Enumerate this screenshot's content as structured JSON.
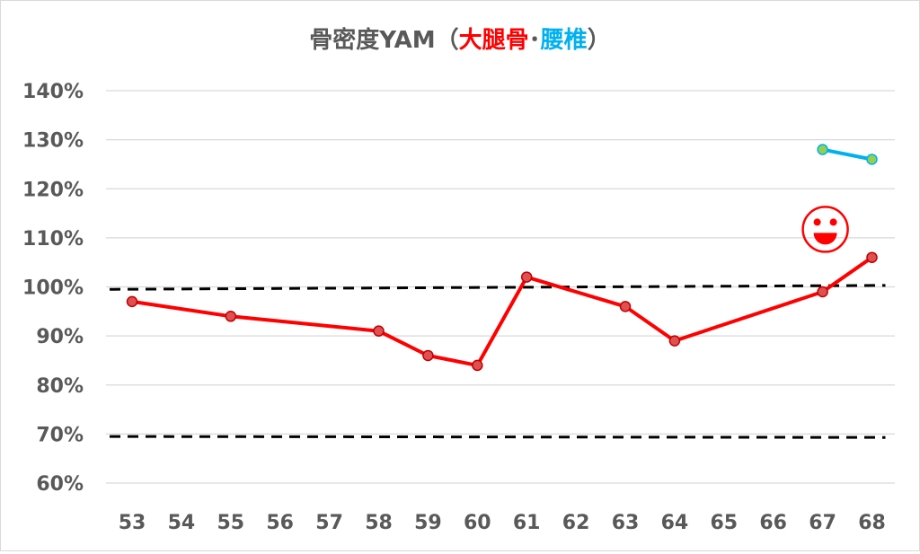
{
  "title": {
    "part1": "骨密度YAM（",
    "part2": "大腿骨",
    "part3": "･",
    "part4": "腰椎",
    "part5": "）"
  },
  "colors": {
    "femur": "#ff0000",
    "lumbar": "#00b0f0",
    "title_text": "#595959",
    "grid": "#d9d9d9",
    "reference_line": "#000000",
    "femur_marker_fill": "#e05050",
    "femur_marker_stroke": "#c00000",
    "lumbar_marker_fill": "#92d050",
    "lumbar_marker_stroke": "#00b0f0"
  },
  "chart_data": {
    "type": "line",
    "categories": [
      "53",
      "54",
      "55",
      "56",
      "57",
      "58",
      "59",
      "60",
      "61",
      "62",
      "63",
      "64",
      "65",
      "66",
      "67",
      "68"
    ],
    "ylim": [
      60,
      140
    ],
    "y_ticks": [
      60,
      70,
      80,
      90,
      100,
      110,
      120,
      130,
      140
    ],
    "y_tick_labels": [
      "60%",
      "70%",
      "80%",
      "90%",
      "100%",
      "110%",
      "120%",
      "130%",
      "140%"
    ],
    "grid": true,
    "legend": "none",
    "xlabel": "",
    "ylabel": "",
    "series": [
      {
        "key": "femur",
        "points": [
          {
            "x": "53",
            "y": 97
          },
          {
            "x": "55",
            "y": 94
          },
          {
            "x": "58",
            "y": 91
          },
          {
            "x": "59",
            "y": 86
          },
          {
            "x": "60",
            "y": 84
          },
          {
            "x": "61",
            "y": 102
          },
          {
            "x": "63",
            "y": 96
          },
          {
            "x": "64",
            "y": 89
          },
          {
            "x": "67",
            "y": 99
          },
          {
            "x": "68",
            "y": 106
          }
        ]
      },
      {
        "key": "lumbar",
        "points": [
          {
            "x": "67",
            "y": 128
          },
          {
            "x": "68",
            "y": 126
          }
        ]
      }
    ],
    "reference_lines": [
      {
        "key": "upper",
        "x_start": "53",
        "y_start": 99.5,
        "x_end": "68",
        "y_end": 100.3
      },
      {
        "key": "lower",
        "x_start": "53",
        "y_start": 69.5,
        "x_end": "68",
        "y_end": 69.3
      }
    ],
    "annotations": [
      {
        "type": "smiley-icon",
        "x": "67",
        "y": 111
      }
    ]
  }
}
